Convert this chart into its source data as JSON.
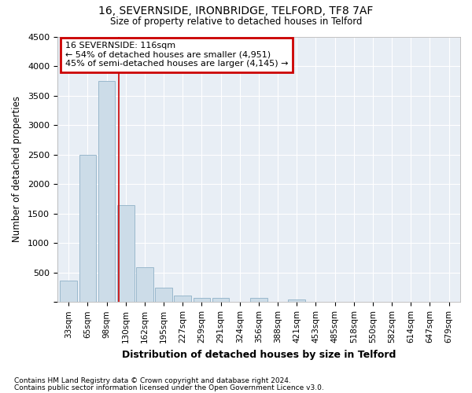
{
  "title1": "16, SEVERNSIDE, IRONBRIDGE, TELFORD, TF8 7AF",
  "title2": "Size of property relative to detached houses in Telford",
  "xlabel": "Distribution of detached houses by size in Telford",
  "ylabel": "Number of detached properties",
  "categories": [
    "33sqm",
    "65sqm",
    "98sqm",
    "130sqm",
    "162sqm",
    "195sqm",
    "227sqm",
    "259sqm",
    "291sqm",
    "324sqm",
    "356sqm",
    "388sqm",
    "421sqm",
    "453sqm",
    "485sqm",
    "518sqm",
    "550sqm",
    "582sqm",
    "614sqm",
    "647sqm",
    "679sqm"
  ],
  "values": [
    370,
    2500,
    3750,
    1640,
    590,
    240,
    105,
    65,
    65,
    0,
    65,
    0,
    50,
    0,
    0,
    0,
    0,
    0,
    0,
    0,
    0
  ],
  "bar_color": "#ccdce8",
  "bar_edge_color": "#9ab8cc",
  "background_color": "#e8eef5",
  "grid_color": "#ffffff",
  "annotation_text": "16 SEVERNSIDE: 116sqm\n← 54% of detached houses are smaller (4,951)\n45% of semi-detached houses are larger (4,145) →",
  "annotation_box_color": "#cc0000",
  "vline_x": 2.65,
  "vline_color": "#cc0000",
  "ylim": [
    0,
    4500
  ],
  "yticks": [
    0,
    500,
    1000,
    1500,
    2000,
    2500,
    3000,
    3500,
    4000,
    4500
  ],
  "footnote1": "Contains HM Land Registry data © Crown copyright and database right 2024.",
  "footnote2": "Contains public sector information licensed under the Open Government Licence v3.0."
}
